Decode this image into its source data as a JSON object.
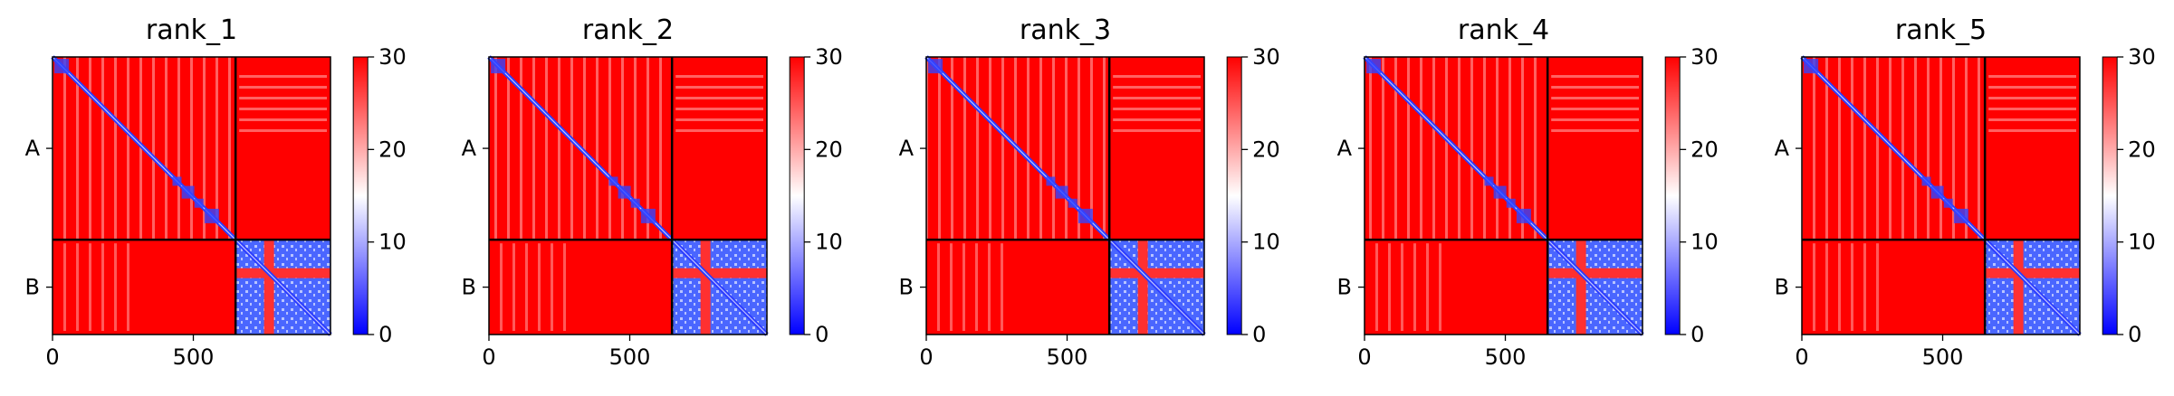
{
  "chart_data": {
    "type": "heatmap",
    "panels": [
      {
        "title": "rank_1"
      },
      {
        "title": "rank_2"
      },
      {
        "title": "rank_3"
      },
      {
        "title": "rank_4"
      },
      {
        "title": "rank_5"
      }
    ],
    "x_ticks": [
      "0",
      "500"
    ],
    "x_tick_values": [
      0,
      500
    ],
    "xlim": [
      0,
      987
    ],
    "ylim": [
      987,
      0
    ],
    "y_ticks": [
      "A",
      "B"
    ],
    "chain_boundary": 650,
    "chain_lengths": {
      "A": 650,
      "B": 337
    },
    "colorbar": {
      "min": 0,
      "max": 30,
      "ticks": [
        "0",
        "10",
        "20",
        "30"
      ],
      "tick_values": [
        0,
        10,
        20,
        30
      ],
      "colors": [
        "#0000ff",
        "#ffffff",
        "#ff0000"
      ]
    },
    "grid": false,
    "legend": "none"
  }
}
